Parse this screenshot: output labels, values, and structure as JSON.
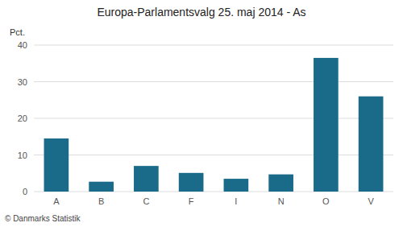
{
  "chart_data": {
    "type": "bar",
    "title": "Europa-Parlamentsvalg 25. maj 2014 - As",
    "ylabel": "Pct.",
    "footer": "© Danmarks Statistik",
    "categories": [
      "A",
      "B",
      "C",
      "F",
      "I",
      "N",
      "O",
      "V"
    ],
    "values": [
      14.5,
      2.7,
      7.0,
      5.1,
      3.5,
      4.7,
      36.5,
      26.0
    ],
    "color": "#1a6b8a",
    "ylim": [
      0,
      40
    ],
    "yticks": [
      0,
      10,
      20,
      30,
      40
    ],
    "grid": true
  }
}
